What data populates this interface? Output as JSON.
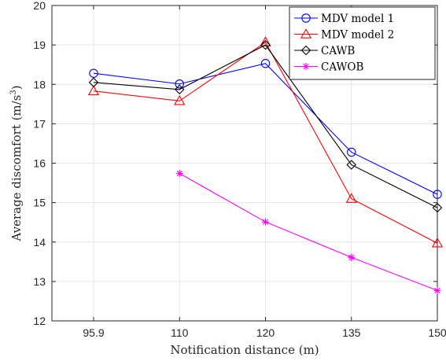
{
  "chart_data": {
    "type": "line",
    "xlabel": "Notification distance (m)",
    "ylabel_main": "Average discomfort (m/s",
    "ylabel_sup": "3",
    "ylabel_close": ")",
    "categories": [
      "95.9",
      "110",
      "120",
      "135",
      "150"
    ],
    "x": [
      95.9,
      110,
      120,
      135,
      150
    ],
    "ylim": [
      12,
      20
    ],
    "yticks": [
      "12",
      "13",
      "14",
      "15",
      "16",
      "17",
      "18",
      "19",
      "20"
    ],
    "grid": true,
    "legend_position": "top-right",
    "series": [
      {
        "name": "MDV model 1",
        "color": "#0000ff",
        "marker": "circle",
        "values": [
          18.28,
          18.01,
          18.53,
          16.28,
          15.21
        ]
      },
      {
        "name": "MDV model 2",
        "color": "#ff0000",
        "marker": "triangle",
        "values": [
          17.83,
          17.58,
          19.07,
          15.1,
          13.97
        ]
      },
      {
        "name": "CAWB",
        "color": "#000000",
        "marker": "diamond",
        "values": [
          18.05,
          17.87,
          19.0,
          15.96,
          14.87
        ]
      },
      {
        "name": "CAWOB",
        "color": "#ff00ff",
        "marker": "asterisk",
        "values": [
          null,
          15.74,
          14.51,
          13.61,
          12.77
        ]
      }
    ]
  }
}
